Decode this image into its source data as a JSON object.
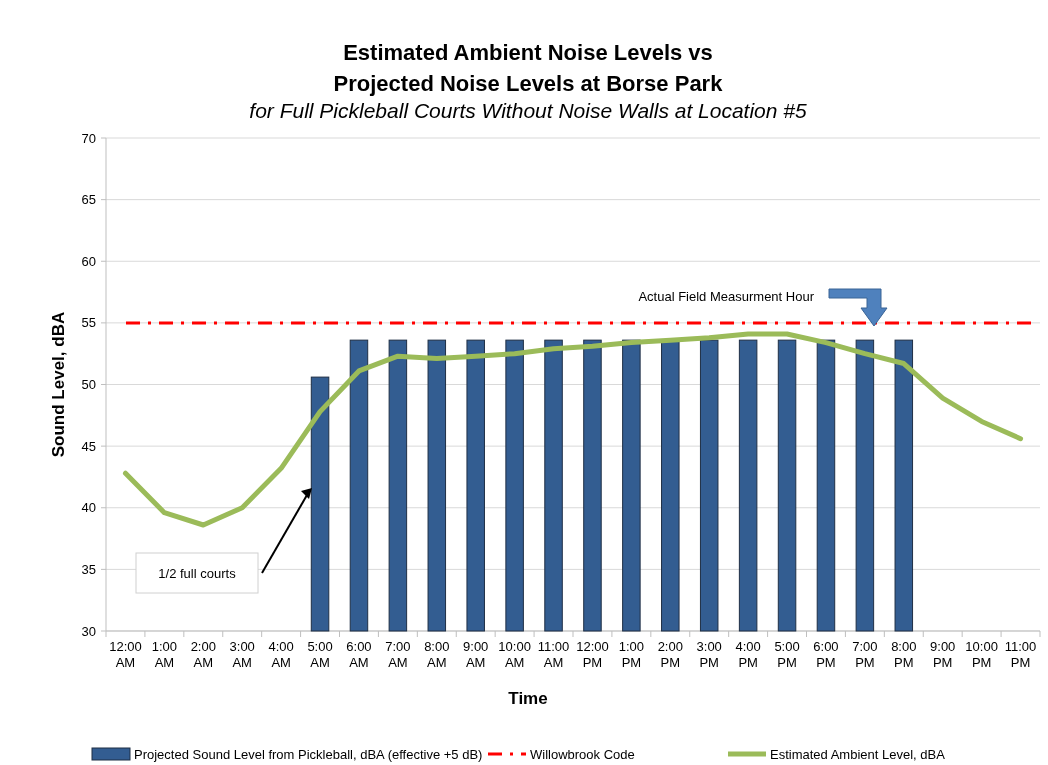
{
  "chart_data": {
    "type": "bar",
    "title": "Estimated Ambient Noise Levels vs\nProjected Noise Levels at Borse Park",
    "subtitle": "for Full Pickleball Courts Without Noise Walls at Location #5",
    "xlabel": "Time",
    "ylabel": "Sound Level, dBA",
    "categories": [
      "12:00 AM",
      "1:00 AM",
      "2:00 AM",
      "3:00 AM",
      "4:00 AM",
      "5:00 AM",
      "6:00 AM",
      "7:00 AM",
      "8:00 AM",
      "9:00 AM",
      "10:00 AM",
      "11:00 AM",
      "12:00 PM",
      "1:00 PM",
      "2:00 PM",
      "3:00 PM",
      "4:00 PM",
      "5:00 PM",
      "6:00 PM",
      "7:00 PM",
      "8:00 PM",
      "9:00 PM",
      "10:00 PM",
      "11:00 PM"
    ],
    "series": [
      {
        "name": "Projected Sound Level from Pickleball, dBA (effective +5 dB)",
        "color": "#335d91",
        "values": [
          null,
          null,
          null,
          null,
          null,
          50.6,
          53.6,
          53.6,
          53.6,
          53.6,
          53.6,
          53.6,
          53.6,
          53.6,
          53.6,
          53.6,
          53.6,
          53.6,
          53.6,
          53.6,
          53.6,
          null,
          null,
          null
        ]
      },
      {
        "name": "Estimated Ambient Level, dBA",
        "type": "line",
        "color": "#9bbb59",
        "values": [
          42.8,
          39.6,
          38.6,
          40.0,
          43.2,
          47.8,
          51.1,
          52.3,
          52.1,
          52.3,
          52.5,
          52.9,
          53.1,
          53.4,
          53.6,
          53.8,
          54.1,
          54.1,
          53.4,
          52.5,
          51.7,
          48.9,
          47.0,
          45.6
        ]
      }
    ],
    "ref_lines": [
      {
        "axis": "y",
        "value": 55,
        "label": "Willowbrook Code",
        "color": "#ff0000",
        "line_style": "dashed"
      }
    ],
    "annotations": [
      "1/2 full courts",
      "Actual Field Measurment Hour"
    ],
    "ylim": [
      30,
      70
    ],
    "yticks": [
      30,
      35,
      40,
      45,
      50,
      55,
      60,
      65,
      70
    ],
    "grid": "y",
    "legend": "bottom"
  }
}
